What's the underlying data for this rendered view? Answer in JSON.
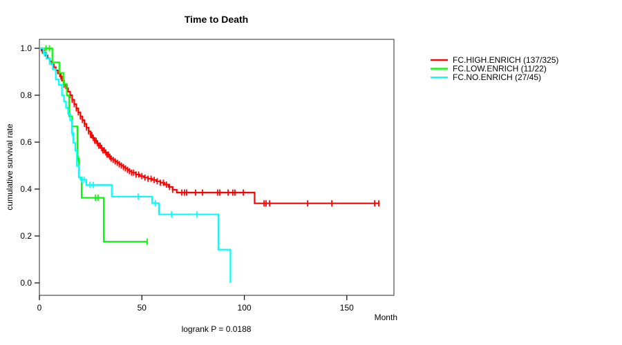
{
  "chart_data": {
    "type": "line",
    "chart_kind": "kaplan-meier-step",
    "title": "Time to Death",
    "ylabel": "cumulative survival rate",
    "xlabel": "Month",
    "caption": "logrank P = 0.0188",
    "xlim": [
      0,
      173
    ],
    "ylim": [
      0,
      1
    ],
    "x_ticks": [
      0,
      50,
      100,
      150
    ],
    "y_ticks": [
      "1.0",
      "0.8",
      "0.6",
      "0.4",
      "0.2",
      "0.0"
    ],
    "grid": false,
    "legend_position": "right-outside",
    "axis_color": "#000000",
    "series": [
      {
        "name": "FC.HIGH.ENRICH (137/325)",
        "color": "#FF0000",
        "end_time": 166,
        "steps": [
          [
            0,
            1.0
          ],
          [
            1,
            0.99
          ],
          [
            2,
            0.981
          ],
          [
            3,
            0.969
          ],
          [
            4,
            0.957
          ],
          [
            5,
            0.945
          ],
          [
            6,
            0.932
          ],
          [
            7,
            0.919
          ],
          [
            8,
            0.906
          ],
          [
            9,
            0.893
          ],
          [
            10,
            0.88
          ],
          [
            11,
            0.862
          ],
          [
            12,
            0.845
          ],
          [
            13,
            0.83
          ],
          [
            14,
            0.815
          ],
          [
            15,
            0.8
          ],
          [
            16,
            0.781
          ],
          [
            17,
            0.762
          ],
          [
            18,
            0.744
          ],
          [
            19,
            0.727
          ],
          [
            20,
            0.71
          ],
          [
            21,
            0.694
          ],
          [
            22,
            0.678
          ],
          [
            23,
            0.662
          ],
          [
            24,
            0.646
          ],
          [
            25,
            0.63
          ],
          [
            26,
            0.618
          ],
          [
            27,
            0.606
          ],
          [
            28,
            0.595
          ],
          [
            29,
            0.585
          ],
          [
            30,
            0.575
          ],
          [
            31,
            0.565
          ],
          [
            32,
            0.556
          ],
          [
            33,
            0.547
          ],
          [
            34,
            0.538
          ],
          [
            35,
            0.53
          ],
          [
            36,
            0.524
          ],
          [
            37,
            0.518
          ],
          [
            38,
            0.512
          ],
          [
            39,
            0.506
          ],
          [
            40,
            0.5
          ],
          [
            41,
            0.494
          ],
          [
            42,
            0.488
          ],
          [
            43,
            0.482
          ],
          [
            44,
            0.476
          ],
          [
            45,
            0.47
          ],
          [
            47,
            0.462
          ],
          [
            49,
            0.455
          ],
          [
            51,
            0.449
          ],
          [
            53,
            0.444
          ],
          [
            55,
            0.439
          ],
          [
            57,
            0.433
          ],
          [
            59,
            0.427
          ],
          [
            61,
            0.419
          ],
          [
            63,
            0.409
          ],
          [
            65,
            0.397
          ],
          [
            67,
            0.385
          ],
          [
            105,
            0.339
          ]
        ],
        "censor_times": [
          1.5,
          2.5,
          3.5,
          8,
          10.5,
          12,
          13.5,
          15,
          16,
          17,
          18,
          19,
          20,
          21,
          22,
          23,
          24,
          25,
          25.6,
          26.3,
          27,
          27.7,
          28.4,
          29,
          29.7,
          30.4,
          31,
          31.7,
          32.4,
          33,
          33.7,
          34.4,
          35,
          36,
          37,
          38,
          39,
          40,
          41,
          42,
          43,
          44,
          45,
          46,
          47.2,
          48.4,
          50,
          51.5,
          53,
          54.5,
          56,
          57.5,
          59,
          60.5,
          62,
          63.5,
          65,
          69.5,
          70.8,
          71.8,
          76.2,
          79.6,
          87,
          88,
          92.1,
          94.4,
          95.4,
          99.5,
          109.6,
          110.6,
          112.3,
          130.9,
          142.7,
          163.6,
          165.6
        ]
      },
      {
        "name": "FC.LOW.ENRICH (11/22)",
        "color": "#00FF00",
        "end_time": 52.6,
        "steps": [
          [
            0,
            1.0
          ],
          [
            6.3,
            0.94
          ],
          [
            9.7,
            0.895
          ],
          [
            11.7,
            0.848
          ],
          [
            13.4,
            0.8
          ],
          [
            14.5,
            0.71
          ],
          [
            16,
            0.667
          ],
          [
            18.5,
            0.53
          ],
          [
            19.3,
            0.45
          ],
          [
            20.6,
            0.363
          ],
          [
            31.4,
            0.176
          ]
        ],
        "censor_times": [
          3.2,
          4.9,
          12.2,
          19.0,
          27.3,
          28.6,
          52.6
        ]
      },
      {
        "name": "FC.NO.ENRICH (27/45)",
        "color": "#00FFFF",
        "end_time": 93.2,
        "steps": [
          [
            0,
            1.0
          ],
          [
            2,
            0.978
          ],
          [
            3.5,
            0.956
          ],
          [
            5,
            0.933
          ],
          [
            6.5,
            0.911
          ],
          [
            8,
            0.867
          ],
          [
            9.5,
            0.844
          ],
          [
            11,
            0.8
          ],
          [
            12,
            0.773
          ],
          [
            13,
            0.747
          ],
          [
            14,
            0.72
          ],
          [
            15,
            0.693
          ],
          [
            15.8,
            0.64
          ],
          [
            16.5,
            0.597
          ],
          [
            17.5,
            0.565
          ],
          [
            18.3,
            0.5
          ],
          [
            19.2,
            0.45
          ],
          [
            20,
            0.44
          ],
          [
            22.9,
            0.418
          ],
          [
            35.3,
            0.368
          ],
          [
            55,
            0.34
          ],
          [
            58.3,
            0.292
          ],
          [
            87.3,
            0.142
          ],
          [
            93.2,
            0.0
          ]
        ],
        "censor_times": [
          2.5,
          16.0,
          20.5,
          21.8,
          24.6,
          26.3,
          48.2,
          56.5,
          64.5,
          76.9
        ]
      }
    ]
  }
}
